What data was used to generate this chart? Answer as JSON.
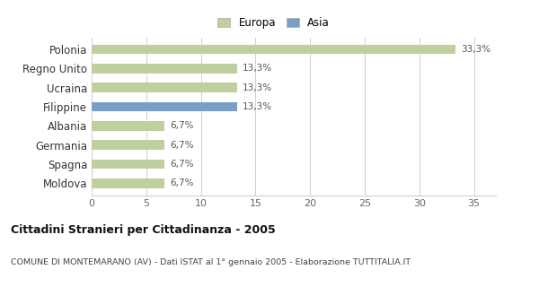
{
  "categories": [
    "Moldova",
    "Spagna",
    "Germania",
    "Albania",
    "Filippine",
    "Ucraina",
    "Regno Unito",
    "Polonia"
  ],
  "values": [
    6.7,
    6.7,
    6.7,
    6.7,
    13.3,
    13.3,
    13.3,
    33.3
  ],
  "labels": [
    "6,7%",
    "6,7%",
    "6,7%",
    "6,7%",
    "13,3%",
    "13,3%",
    "13,3%",
    "33,3%"
  ],
  "colors": [
    "#bfcfa0",
    "#bfcfa0",
    "#bfcfa0",
    "#bfcfa0",
    "#7b9fc4",
    "#bfcfa0",
    "#bfcfa0",
    "#bfcfa0"
  ],
  "europa_color": "#bfcfa0",
  "asia_color": "#7b9fc4",
  "xlim": [
    0,
    37
  ],
  "xticks": [
    0,
    5,
    10,
    15,
    20,
    25,
    30,
    35
  ],
  "title_bold": "Cittadini Stranieri per Cittadinanza - 2005",
  "subtitle": "COMUNE DI MONTEMARANO (AV) - Dati ISTAT al 1° gennaio 2005 - Elaborazione TUTTITALIA.IT",
  "bg_color": "#ffffff",
  "grid_color": "#d0d0d0",
  "bar_height": 0.5
}
